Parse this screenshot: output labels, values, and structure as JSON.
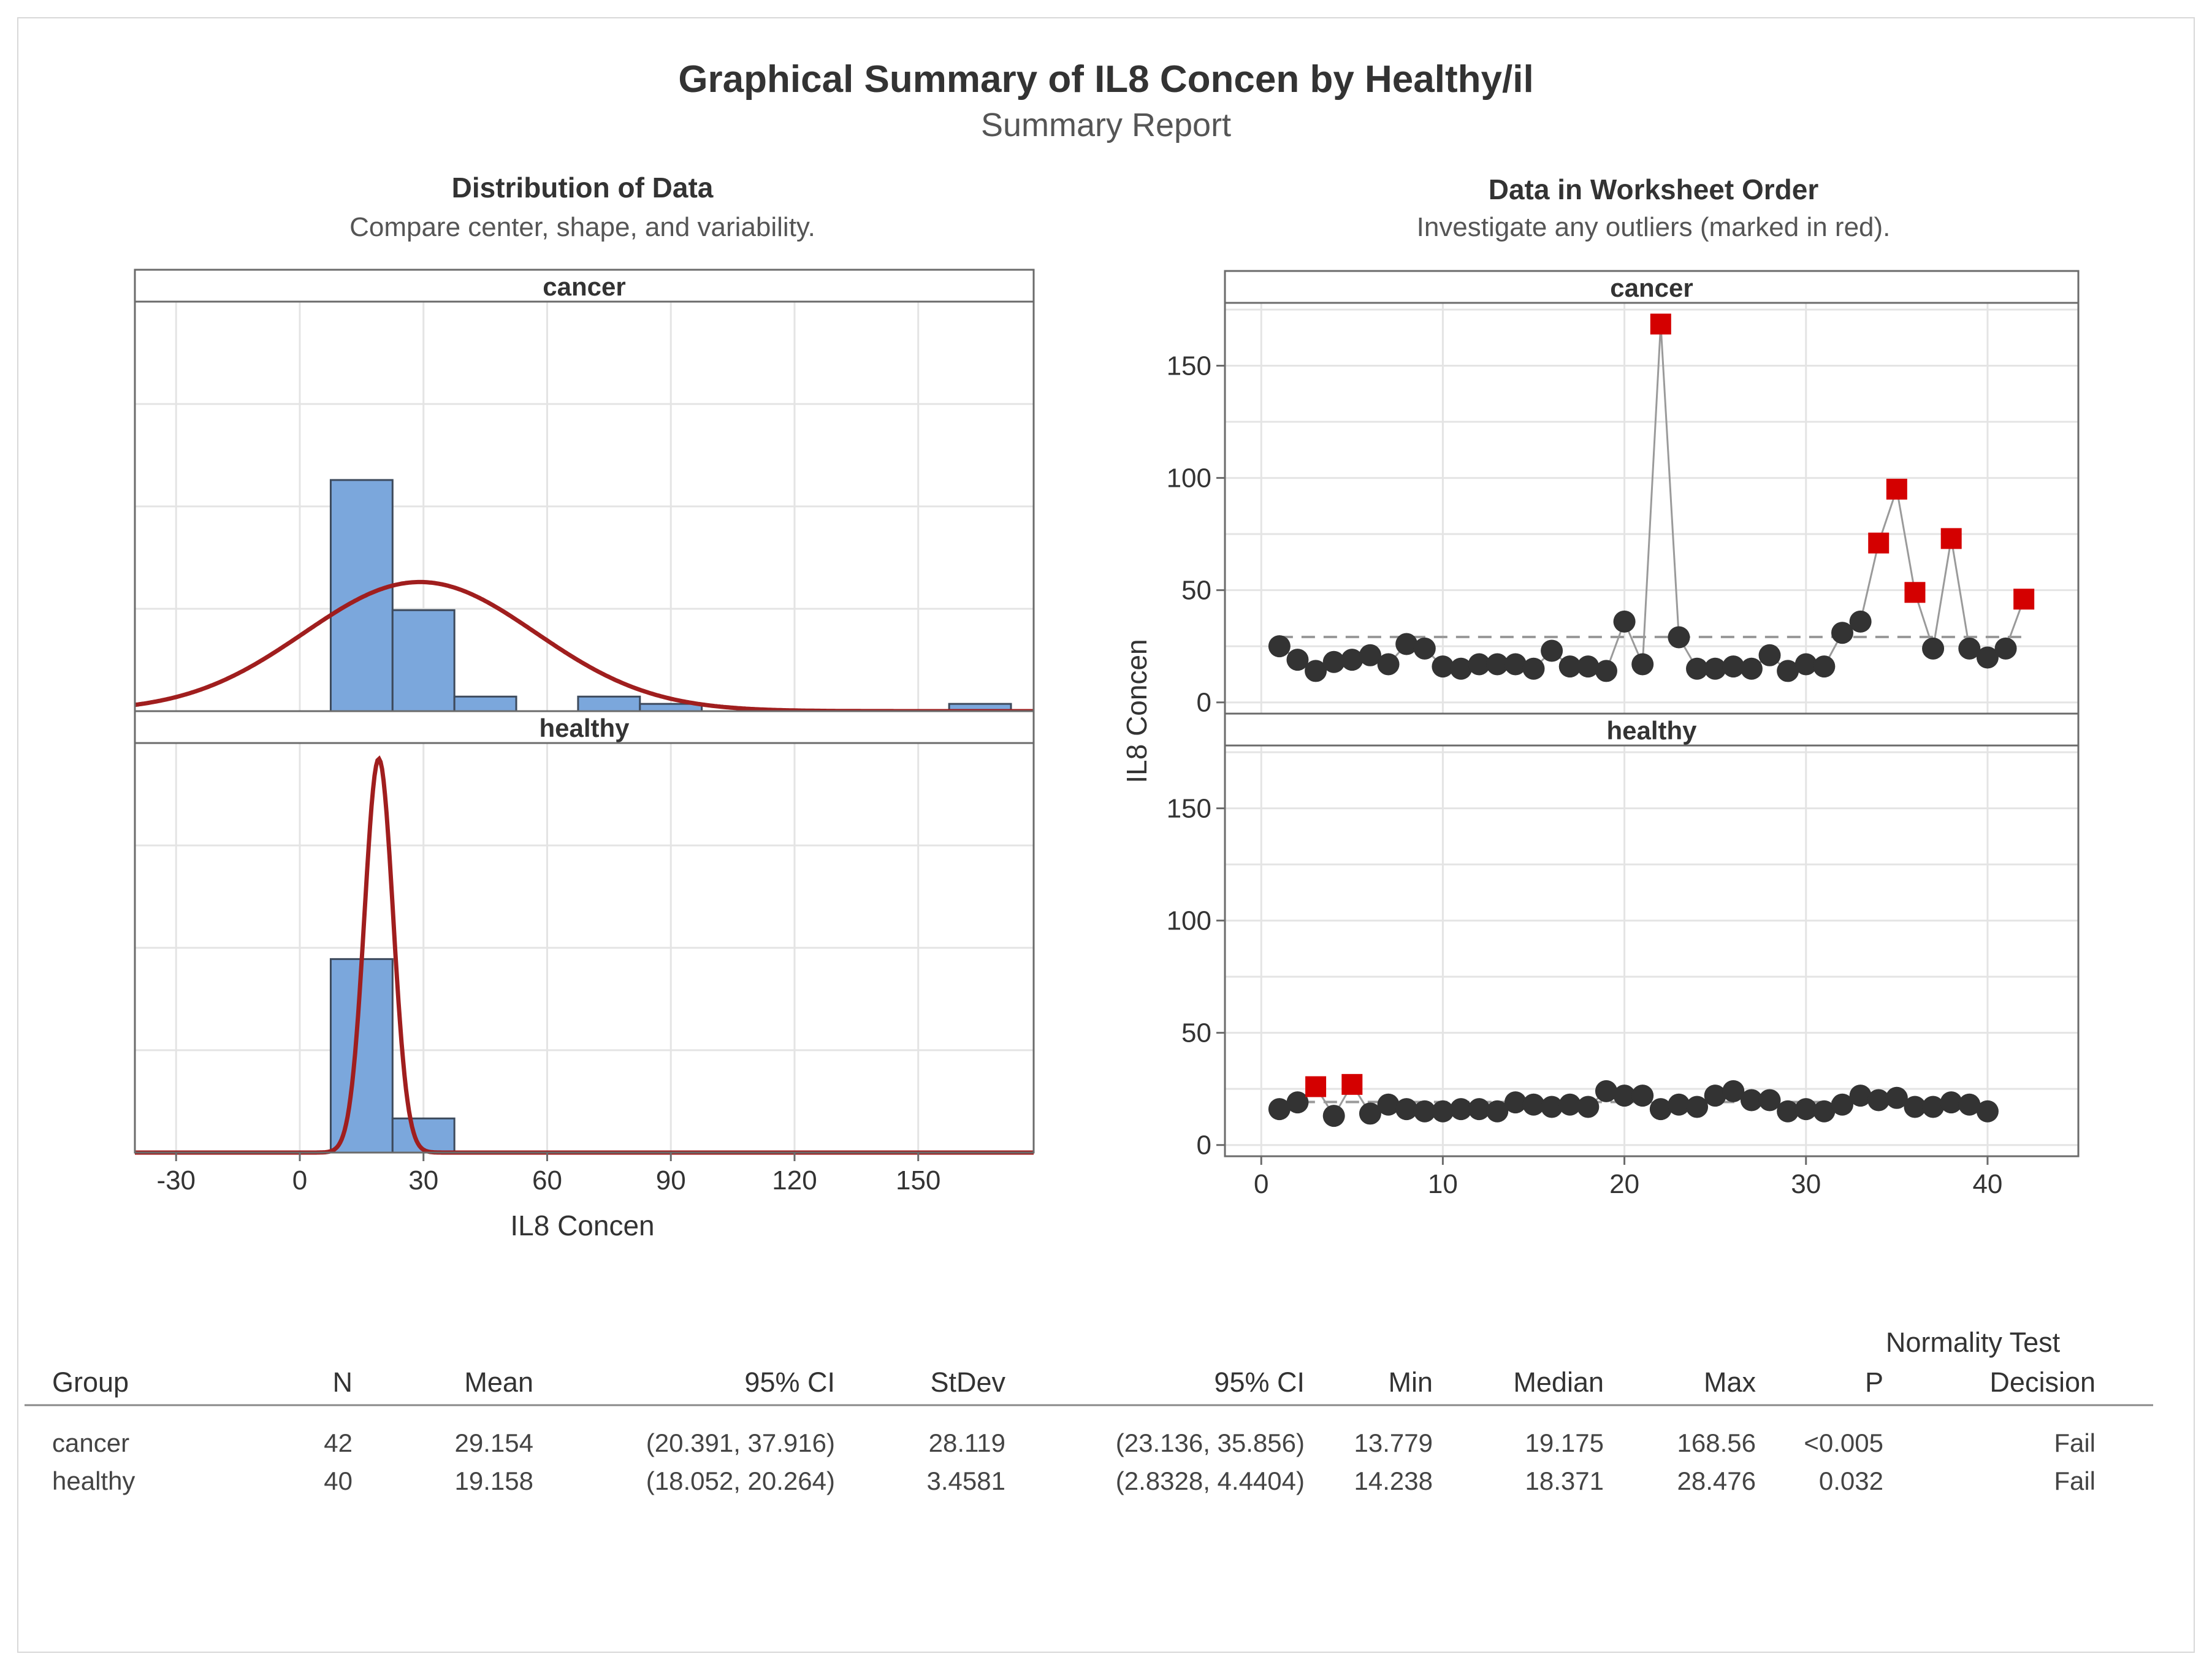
{
  "title": "Graphical Summary of IL8 Concen by Healthy/il",
  "subtitle": "Summary Report",
  "colors": {
    "bar_fill": "#7ba7dc",
    "bar_stroke": "#3d4a5c",
    "curve": "#a01e1e",
    "point": "#333333",
    "outlier": "#d40000",
    "grid": "#e4e4e4",
    "frame": "#6b6b6b"
  },
  "chart_data": [
    {
      "type": "histogram",
      "title": "Distribution of Data",
      "subtitle": "Compare center, shape, and variability.",
      "xlabel": "IL8 Concen",
      "xlim": [
        -40,
        178
      ],
      "xticks": [
        -30,
        0,
        30,
        60,
        90,
        120,
        150
      ],
      "panels": [
        {
          "label": "cancer",
          "ylim": [
            0,
            0.045
          ],
          "bins": [
            {
              "start": 7.5,
              "end": 22.5,
              "density": 0.0254
            },
            {
              "start": 22.5,
              "end": 37.5,
              "density": 0.0111
            },
            {
              "start": 37.5,
              "end": 52.5,
              "density": 0.0016
            },
            {
              "start": 52.5,
              "end": 67.5,
              "density": 0
            },
            {
              "start": 67.5,
              "end": 82.5,
              "density": 0.0016
            },
            {
              "start": 82.5,
              "end": 97.5,
              "density": 0.0008
            },
            {
              "start": 157.5,
              "end": 172.5,
              "density": 0.0008
            }
          ],
          "normal_fit": {
            "mean": 29.154,
            "stdev": 28.119
          }
        },
        {
          "label": "healthy",
          "ylim": [
            0,
            0.12
          ],
          "bins": [
            {
              "start": 7.5,
              "end": 22.5,
              "density": 0.0567
            },
            {
              "start": 22.5,
              "end": 37.5,
              "density": 0.01
            }
          ],
          "normal_fit": {
            "mean": 19.158,
            "stdev": 3.4581
          }
        }
      ]
    },
    {
      "type": "line",
      "title": "Data in Worksheet Order",
      "subtitle": "Investigate any outliers (marked in red).",
      "ylabel": "IL8 Concen",
      "xlim": [
        -2,
        45
      ],
      "xticks": [
        0,
        10,
        20,
        30,
        40
      ],
      "ylim": [
        -5,
        178
      ],
      "yticks": [
        0,
        50,
        100,
        150
      ],
      "panels": [
        {
          "label": "cancer",
          "mean_line": 29.154,
          "x": [
            1,
            2,
            3,
            4,
            5,
            6,
            7,
            8,
            9,
            10,
            11,
            12,
            13,
            14,
            15,
            16,
            17,
            18,
            19,
            20,
            21,
            22,
            23,
            24,
            25,
            26,
            27,
            28,
            29,
            30,
            31,
            32,
            33,
            34,
            35,
            36,
            37,
            38,
            39,
            40,
            41,
            42
          ],
          "values": [
            25,
            19,
            14,
            18,
            19,
            21,
            17,
            26,
            24,
            16,
            15,
            17,
            17,
            17,
            15,
            23,
            16,
            16,
            14,
            36,
            17,
            168.56,
            29,
            15,
            15,
            16,
            15,
            21,
            14,
            17,
            16,
            31,
            36,
            71,
            95,
            49,
            24,
            73,
            24,
            20,
            24,
            46
          ],
          "outlier_index": [
            22,
            34,
            35,
            36,
            38,
            42
          ]
        },
        {
          "label": "healthy",
          "mean_line": 19.158,
          "x": [
            1,
            2,
            3,
            4,
            5,
            6,
            7,
            8,
            9,
            10,
            11,
            12,
            13,
            14,
            15,
            16,
            17,
            18,
            19,
            20,
            21,
            22,
            23,
            24,
            25,
            26,
            27,
            28,
            29,
            30,
            31,
            32,
            33,
            34,
            35,
            36,
            37,
            38,
            39,
            40
          ],
          "values": [
            16,
            19,
            26,
            13,
            27,
            14,
            18,
            16,
            15,
            15,
            16,
            16,
            15,
            19,
            18,
            17,
            18,
            17,
            24,
            22,
            22,
            16,
            18,
            17,
            22,
            24,
            20,
            20,
            15,
            16,
            15,
            18,
            22,
            20,
            21,
            17,
            17,
            19,
            18,
            15
          ],
          "outlier_index": [
            3,
            5
          ]
        }
      ]
    }
  ],
  "table": {
    "normality_header": "Normality Test",
    "columns": [
      "Group",
      "N",
      "Mean",
      "95% CI",
      "StDev",
      "95% CI",
      "Min",
      "Median",
      "Max",
      "P",
      "Decision"
    ],
    "rows": [
      [
        "cancer",
        "42",
        "29.154",
        "(20.391, 37.916)",
        "28.119",
        "(23.136, 35.856)",
        "13.779",
        "19.175",
        "168.56",
        "<0.005",
        "Fail"
      ],
      [
        "healthy",
        "40",
        "19.158",
        "(18.052, 20.264)",
        "3.4581",
        "(2.8328, 4.4404)",
        "14.238",
        "18.371",
        "28.476",
        "0.032",
        "Fail"
      ]
    ]
  }
}
